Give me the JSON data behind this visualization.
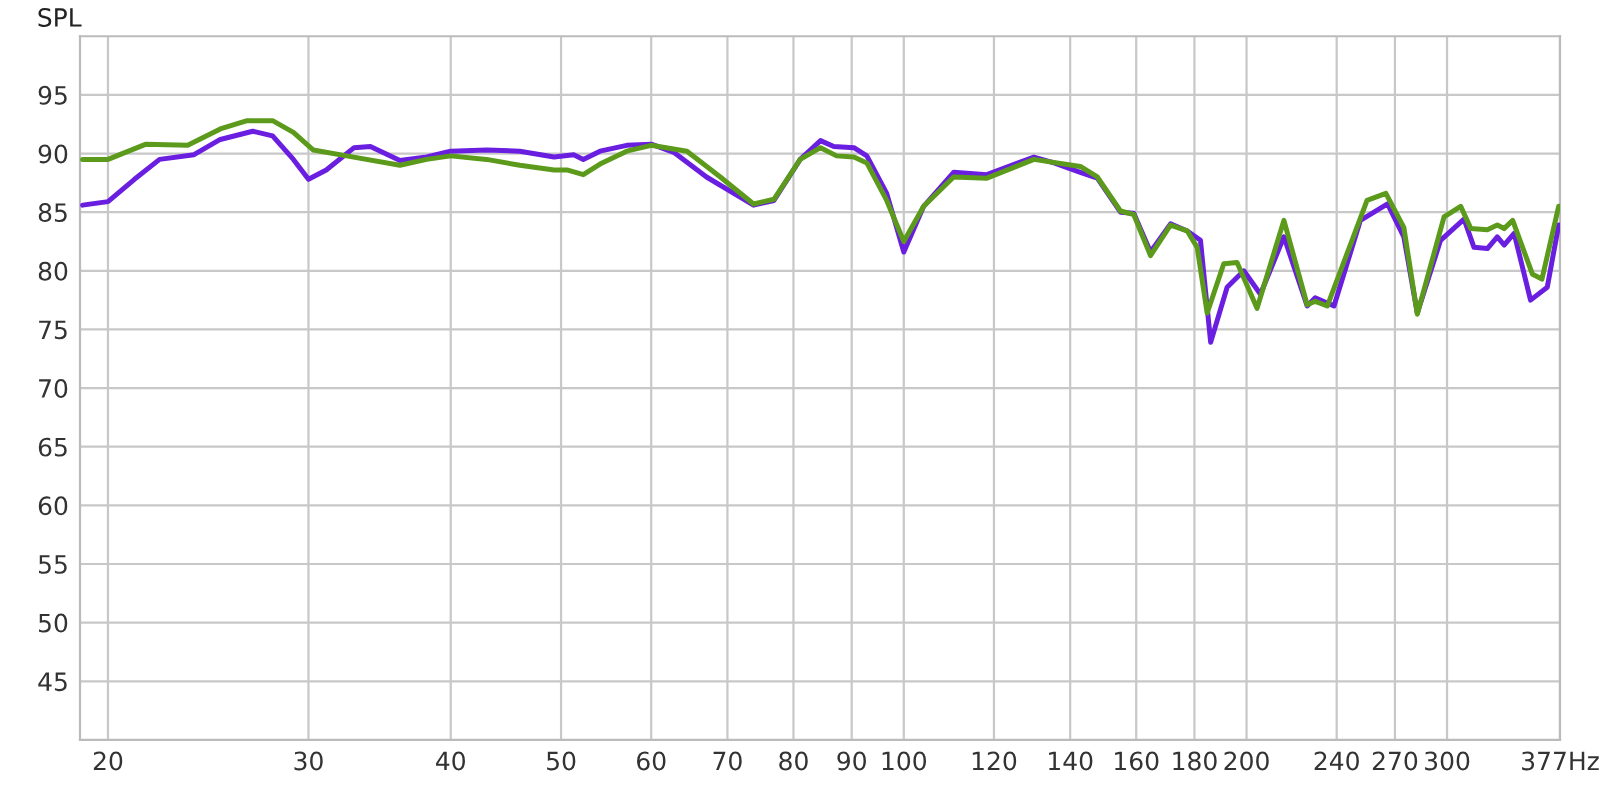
{
  "chart_data": {
    "type": "line",
    "ylabel": "SPL",
    "log": "x",
    "grid": true,
    "marker": "none",
    "line_style": "solid",
    "xlim": [
      18.9,
      377
    ],
    "ylim": [
      40,
      100
    ],
    "xticks": [
      20,
      30,
      40,
      50,
      60,
      70,
      80,
      90,
      100,
      120,
      140,
      160,
      180,
      200,
      240,
      270,
      300,
      {
        "value": 377,
        "label": "377Hz"
      }
    ],
    "yticks": [
      45,
      50,
      55,
      60,
      65,
      70,
      75,
      80,
      85,
      90,
      95
    ],
    "series": [
      {
        "color": "#6a1fe0",
        "x": [
          19.0,
          20.0,
          21.1,
          22.2,
          23.8,
          25.1,
          26.8,
          27.9,
          29.1,
          30.0,
          31.1,
          32.9,
          34.0,
          36.1,
          38.1,
          40.0,
          43.0,
          46.0,
          49.3,
          51.3,
          52.3,
          54.1,
          57.1,
          60.0,
          62.8,
          67.1,
          73.8,
          76.9,
          81.1,
          84.5,
          86.8,
          90.4,
          92.8,
          96.6,
          100,
          104.1,
          110.6,
          118.3,
          130.1,
          135.5,
          142.9,
          147.9,
          155.0,
          159.2,
          164.7,
          171.5,
          177.4,
          182.2,
          186.0,
          192.3,
          198.9,
          205.7,
          215.7,
          226.1,
          229.8,
          238.7,
          251.8,
          266,
          274.9,
          282.5,
          296.1,
          310.5,
          316.8,
          325.5,
          332.1,
          336.7,
          343.6,
          355.2,
          367.4,
          376
        ],
        "values": [
          85.6,
          85.9,
          87.8,
          89.5,
          89.9,
          91.2,
          91.9,
          91.5,
          89.5,
          87.8,
          88.6,
          90.5,
          90.6,
          89.4,
          89.7,
          90.2,
          90.3,
          90.2,
          89.7,
          89.9,
          89.5,
          90.2,
          90.7,
          90.8,
          90.1,
          88.0,
          85.6,
          86.0,
          89.5,
          91.1,
          90.6,
          90.5,
          89.8,
          86.6,
          81.6,
          85.5,
          88.4,
          88.2,
          89.7,
          89.2,
          88.4,
          87.9,
          85.0,
          84.9,
          81.6,
          84.0,
          83.4,
          82.6,
          73.9,
          78.6,
          80.0,
          78.0,
          82.9,
          77.0,
          77.7,
          77.0,
          84.3,
          85.7,
          82.9,
          76.4,
          82.6,
          84.4,
          82.0,
          81.9,
          82.9,
          82.2,
          83.2,
          77.5,
          78.6,
          83.9
        ]
      },
      {
        "color": "#5c9a1c",
        "x": [
          19.0,
          20.0,
          21.6,
          23.5,
          25.1,
          26.5,
          27.9,
          29.1,
          30.3,
          32.4,
          36.1,
          38.1,
          40.0,
          43.0,
          46.0,
          49.3,
          50.6,
          52.3,
          54.1,
          57.1,
          60.0,
          64.5,
          69.0,
          73.8,
          76.9,
          81.1,
          84.5,
          87.3,
          90.4,
          92.8,
          96.6,
          100,
          104.1,
          110.6,
          118.3,
          130.1,
          142.9,
          147.9,
          155.0,
          159.2,
          164.7,
          171.5,
          177.4,
          181.0,
          184.7,
          191.0,
          196.2,
          204.3,
          215.7,
          226.1,
          229.8,
          235.5,
          255.2,
          265.1,
          274.9,
          282.5,
          298.2,
          308.4,
          314.8,
          325.5,
          332.1,
          336.7,
          342.6,
          356.6,
          363.5,
          376
        ],
        "values": [
          89.5,
          89.5,
          90.8,
          90.7,
          92.1,
          92.8,
          92.8,
          91.8,
          90.3,
          89.8,
          89.0,
          89.5,
          89.8,
          89.5,
          89.0,
          88.6,
          88.6,
          88.2,
          89.1,
          90.2,
          90.7,
          90.2,
          88.0,
          85.7,
          86.1,
          89.5,
          90.5,
          89.8,
          89.7,
          89.2,
          86.0,
          82.5,
          85.5,
          88.0,
          87.9,
          89.5,
          88.9,
          88.0,
          85.1,
          84.8,
          81.3,
          83.9,
          83.4,
          82.0,
          76.4,
          80.6,
          80.7,
          76.8,
          84.3,
          77.1,
          77.4,
          77.0,
          86.0,
          86.6,
          83.7,
          76.3,
          84.6,
          85.5,
          83.6,
          83.5,
          83.9,
          83.6,
          84.3,
          79.7,
          79.3,
          85.5
        ]
      }
    ]
  }
}
